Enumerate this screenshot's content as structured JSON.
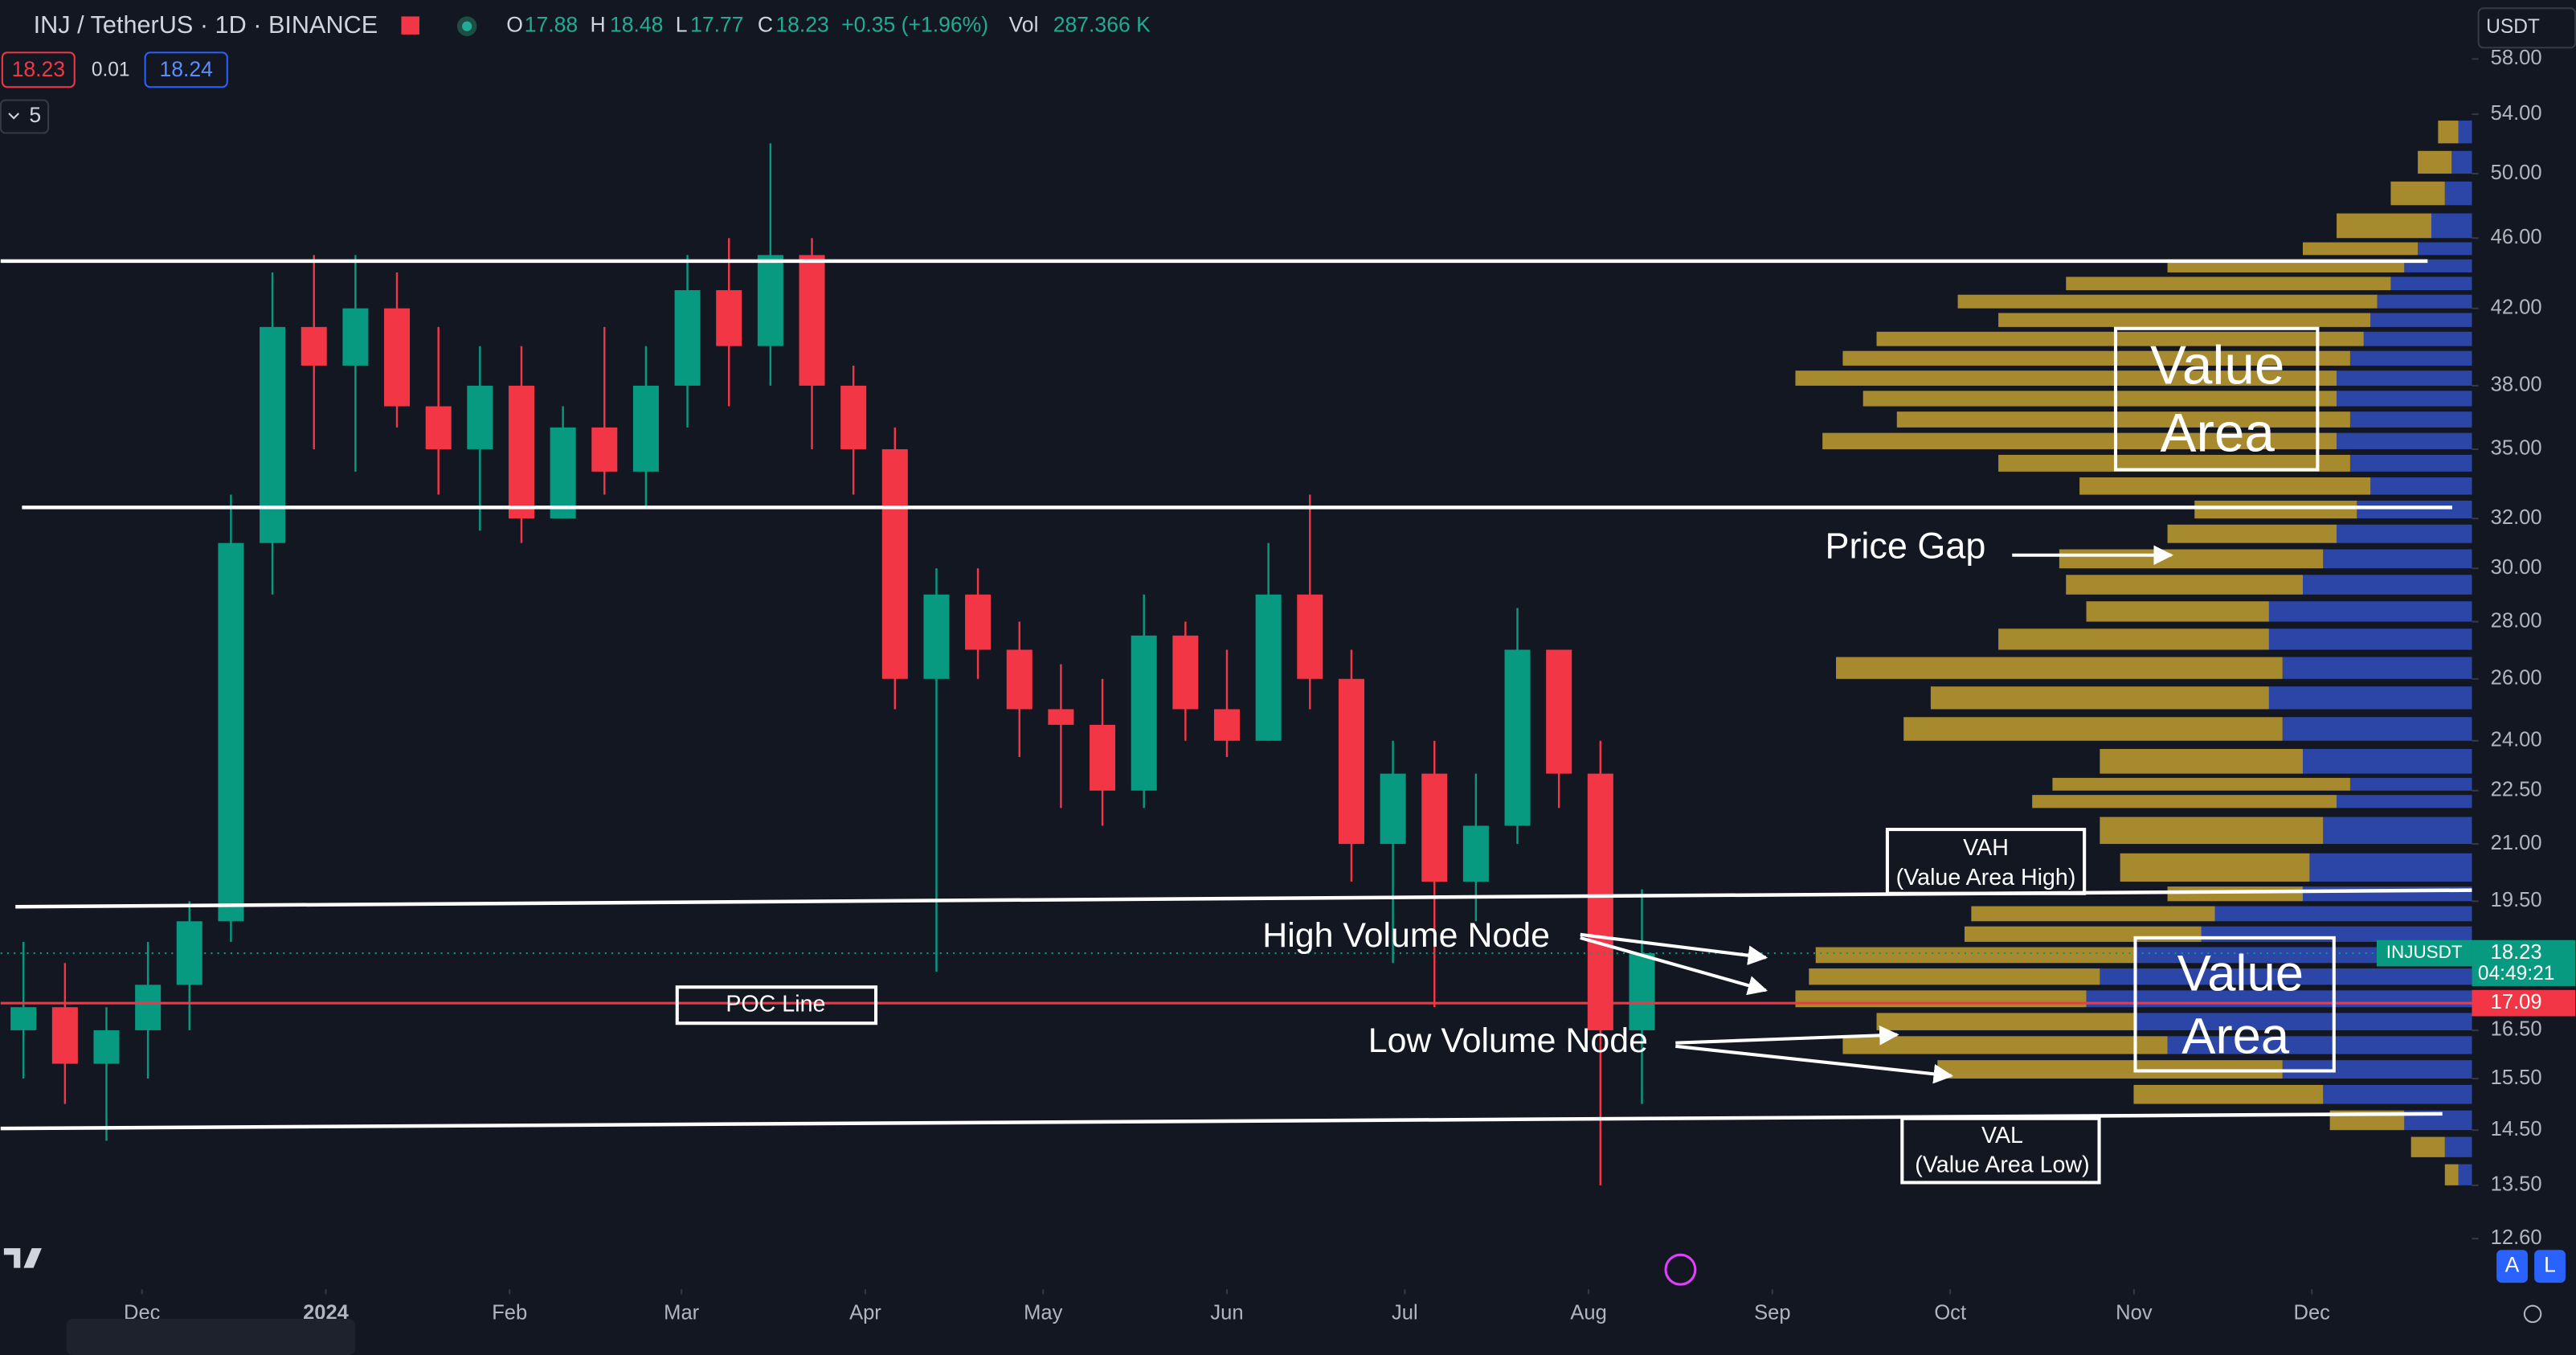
{
  "header": {
    "symbol": "INJ / TetherUS · 1D · BINANCE",
    "open_label": "O",
    "open": 17.88,
    "high_label": "H",
    "high": 18.48,
    "low_label": "L",
    "low": 17.77,
    "close_label": "C",
    "close": 18.23,
    "change": "+0.35 (+1.96%)",
    "volume_label": "Vol",
    "volume": "287.366 K",
    "bid": 18.23,
    "spread": 0.01,
    "ask": 18.24,
    "indicators_count": 5,
    "currency": "USDT"
  },
  "chart_data": {
    "type": "candlestick",
    "log_scale": true,
    "xlim": [
      -0.55,
      59
    ],
    "ylim": [
      11.8,
      62.6
    ],
    "yticks": [
      {
        "value": 58,
        "label": "58.00"
      },
      {
        "value": 54,
        "label": "54.00"
      },
      {
        "value": 50,
        "label": "50.00"
      },
      {
        "value": 46,
        "label": "46.00"
      },
      {
        "value": 42,
        "label": "42.00"
      },
      {
        "value": 38,
        "label": "38.00"
      },
      {
        "value": 35,
        "label": "35.00"
      },
      {
        "value": 32,
        "label": "32.00"
      },
      {
        "value": 30,
        "label": "30.00"
      },
      {
        "value": 28,
        "label": "28.00"
      },
      {
        "value": 26,
        "label": "26.00"
      },
      {
        "value": 24,
        "label": "24.00"
      },
      {
        "value": 22.5,
        "label": "22.50"
      },
      {
        "value": 21,
        "label": "21.00"
      },
      {
        "value": 19.5,
        "label": "19.50"
      },
      {
        "value": 16.5,
        "label": "16.50"
      },
      {
        "value": 15.5,
        "label": "15.50"
      },
      {
        "value": 14.5,
        "label": "14.50"
      },
      {
        "value": 13.5,
        "label": "13.50"
      },
      {
        "value": 12.6,
        "label": "12.60"
      }
    ],
    "xticks": [
      {
        "value": 2.857,
        "label": "Dec"
      },
      {
        "value": 7.286,
        "label": "2024"
      },
      {
        "value": 11.714,
        "label": "Feb"
      },
      {
        "value": 15.857,
        "label": "Mar"
      },
      {
        "value": 20.286,
        "label": "Apr"
      },
      {
        "value": 24.571,
        "label": "May"
      },
      {
        "value": 29,
        "label": "Jun"
      },
      {
        "value": 33.286,
        "label": "Jul"
      },
      {
        "value": 37.714,
        "label": "Aug"
      },
      {
        "value": 42.143,
        "label": "Sep"
      },
      {
        "value": 46.429,
        "label": "Oct"
      },
      {
        "value": 50.857,
        "label": "Nov"
      },
      {
        "value": 55.143,
        "label": "Dec"
      }
    ],
    "series": [
      {
        "name": "INJUSDT",
        "up_color": "#089981",
        "down_color": "#f23645",
        "open": [
          16.5,
          17,
          15.8,
          16.5,
          17.5,
          19,
          31,
          41,
          39,
          42,
          37,
          35,
          38,
          32,
          36,
          34,
          38,
          43,
          40,
          45,
          38,
          35,
          26,
          29,
          27,
          25,
          24.5,
          22.5,
          27.5,
          25,
          24,
          29,
          26,
          21,
          23,
          20,
          21.5,
          27,
          23,
          16.5
        ],
        "high": [
          18.5,
          18,
          17,
          18.5,
          19.5,
          33,
          44,
          45,
          45,
          44,
          41,
          40,
          40,
          37,
          41,
          40,
          45,
          46,
          52,
          46,
          39,
          36,
          30,
          30,
          28,
          26.5,
          26,
          29,
          28,
          27,
          31,
          33,
          27,
          24,
          24,
          23,
          28.5,
          27,
          24,
          19.8
        ],
        "low": [
          15.5,
          15,
          14.3,
          15.5,
          16.5,
          18.5,
          29,
          35,
          34,
          36,
          33,
          31.5,
          31,
          32,
          33,
          32.5,
          36,
          37,
          38,
          35,
          33,
          25,
          17.8,
          26,
          23.5,
          22,
          21.5,
          22,
          24,
          23.5,
          24,
          25,
          20,
          18,
          17,
          19,
          21,
          22,
          13.5,
          15
        ],
        "close": [
          17,
          15.8,
          16.5,
          17.5,
          19,
          31,
          41,
          39,
          42,
          37,
          35,
          38,
          32,
          36,
          34,
          38,
          43,
          40,
          45,
          38,
          35,
          26,
          29,
          27,
          25,
          24.5,
          22.5,
          27.5,
          25,
          24,
          29,
          26,
          21,
          23,
          20,
          21.5,
          27,
          23,
          16.5,
          18.23
        ]
      }
    ],
    "last_price": 18.23,
    "last_color": "#089981",
    "countdown": "04:49:21",
    "poc": 17.09,
    "poc_color": "#f23645",
    "volume_profile": {
      "xlim": [
        100,
        0
      ],
      "up_color": "#a88a2e",
      "down_color": "#2c46a8",
      "prices": [
        13.5,
        14,
        14.5,
        15,
        15.5,
        16,
        16.5,
        17,
        17.5,
        18,
        18.5,
        19,
        19.5,
        20,
        21,
        22,
        22.5,
        23,
        24,
        25,
        26,
        27,
        28,
        29,
        30,
        31,
        32,
        33,
        34,
        35,
        36,
        37,
        38,
        39,
        40,
        41,
        42,
        43,
        44,
        45,
        46,
        48,
        50,
        52
      ],
      "up": [
        2,
        5,
        11,
        28,
        51,
        48,
        38,
        43,
        43,
        47,
        35,
        36,
        20,
        28,
        33,
        45,
        44,
        30,
        56,
        50,
        66,
        40,
        27,
        35,
        39,
        25,
        24,
        43,
        52,
        76,
        67,
        70,
        80,
        75,
        72,
        55,
        62,
        48,
        35,
        17,
        14,
        8,
        5,
        3
      ],
      "down": [
        2,
        4,
        10,
        22,
        28,
        45,
        50,
        57,
        55,
        50,
        40,
        38,
        25,
        24,
        22,
        20,
        18,
        25,
        28,
        30,
        28,
        30,
        30,
        25,
        22,
        20,
        17,
        15,
        18,
        20,
        18,
        20,
        20,
        18,
        16,
        15,
        14,
        12,
        10,
        8,
        6,
        4,
        3,
        2
      ]
    },
    "lines": [
      {
        "from": 44.65,
        "to": 44.65
      },
      {
        "from": 32.46,
        "to": 32.46
      },
      {
        "from": 19.36,
        "to": 19.78
      },
      {
        "from": 14.53,
        "to": 14.81
      }
    ],
    "annotations": {
      "value_area_top": [
        "Value",
        "Area"
      ],
      "value_area_bottom": [
        "Value",
        "Area"
      ],
      "price_gap": "Price Gap",
      "vah": "VAH",
      "vah_sub": "(Value Area High)",
      "high_volume_node": "High Volume Node",
      "low_volume_node": "Low Volume Node",
      "poc_line": "POC Line",
      "val": "VAL",
      "val_sub": "(Value Area Low)"
    },
    "buttons": {
      "auto": "A",
      "log": "L"
    }
  }
}
